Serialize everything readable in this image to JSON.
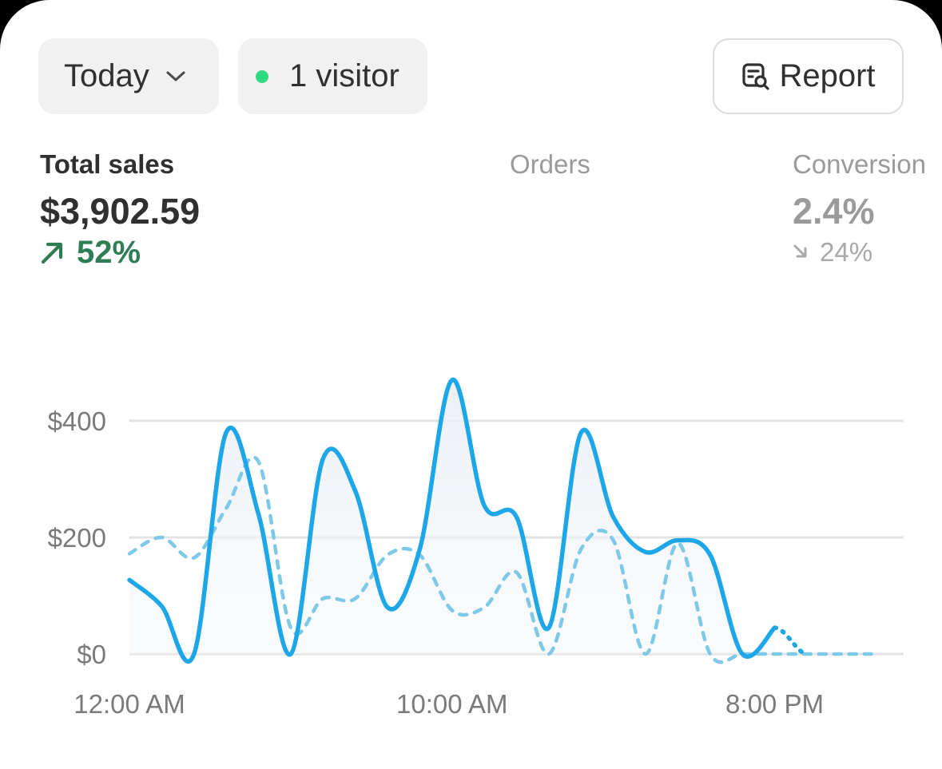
{
  "filters": {
    "period_label": "Today",
    "visitors_label": "1 visitor",
    "report_label": "Report"
  },
  "metrics": {
    "total_sales": {
      "label": "Total sales",
      "value": "$3,902.59",
      "change": "52%",
      "direction": "up"
    },
    "orders": {
      "label": "Orders"
    },
    "conversion": {
      "label": "Conversion",
      "value": "2.4%",
      "change": "24%",
      "direction": "down"
    }
  },
  "colors": {
    "primary_line": "#1ea7e8",
    "comparison_line": "#7ec8e8",
    "positive": "#2e7d55",
    "online_dot": "#2fd980"
  },
  "chart_data": {
    "type": "line",
    "x_labels": [
      "12:00 AM",
      "10:00 AM",
      "8:00 PM"
    ],
    "y_ticks": [
      "$400",
      "$200",
      "$0"
    ],
    "ylim": [
      0,
      400
    ],
    "grid": true,
    "series": [
      {
        "style": "solid",
        "values": [
          [
            0,
            127
          ],
          [
            1,
            82
          ],
          [
            2,
            0
          ],
          [
            3,
            380
          ],
          [
            4,
            240
          ],
          [
            5,
            0
          ],
          [
            6,
            335
          ],
          [
            7,
            280
          ],
          [
            8,
            80
          ],
          [
            9,
            180
          ],
          [
            10,
            470
          ],
          [
            11,
            255
          ],
          [
            12,
            235
          ],
          [
            13,
            45
          ],
          [
            14,
            380
          ],
          [
            15,
            235
          ],
          [
            16,
            175
          ],
          [
            17,
            195
          ],
          [
            18,
            170
          ],
          [
            19,
            0
          ],
          [
            20,
            45
          ]
        ]
      },
      {
        "style": "dashed",
        "values": [
          [
            0,
            172
          ],
          [
            1,
            200
          ],
          [
            2,
            165
          ],
          [
            3,
            250
          ],
          [
            4,
            330
          ],
          [
            5,
            45
          ],
          [
            6,
            95
          ],
          [
            7,
            95
          ],
          [
            8,
            170
          ],
          [
            9,
            170
          ],
          [
            10,
            75
          ],
          [
            11,
            80
          ],
          [
            12,
            140
          ],
          [
            13,
            0
          ],
          [
            14,
            180
          ],
          [
            15,
            195
          ],
          [
            16,
            0
          ],
          [
            17,
            190
          ],
          [
            18,
            0
          ],
          [
            19,
            0
          ],
          [
            20,
            0
          ],
          [
            21,
            0
          ],
          [
            22,
            0
          ],
          [
            23,
            0
          ]
        ]
      }
    ]
  }
}
